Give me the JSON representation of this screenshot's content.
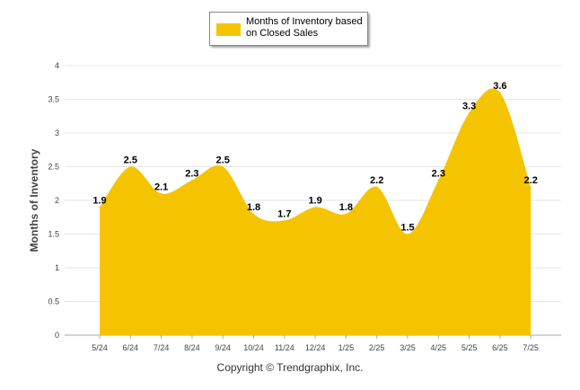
{
  "chart_data": {
    "type": "area",
    "categories": [
      "5/24",
      "6/24",
      "7/24",
      "8/24",
      "9/24",
      "10/24",
      "11/24",
      "12/24",
      "1/25",
      "2/25",
      "3/25",
      "4/25",
      "5/25",
      "6/25",
      "7/25"
    ],
    "series": [
      {
        "name": "Months of Inventory based on Closed Sales",
        "values": [
          1.9,
          2.5,
          2.1,
          2.3,
          2.5,
          1.8,
          1.7,
          1.9,
          1.8,
          2.2,
          1.5,
          2.3,
          3.3,
          3.6,
          2.2
        ],
        "color": "#f5c400"
      }
    ],
    "data_labels": [
      "1.9",
      "2.5",
      "2.1",
      "2.3",
      "2.5",
      "1.8",
      "1.7",
      "1.9",
      "1.8",
      "2.2",
      "1.5",
      "2.3",
      "3.3",
      "3.6",
      "2.2"
    ],
    "ylabel": "Months of Inventory",
    "ylim": [
      0,
      4
    ],
    "yticks": [
      "0",
      "0.5",
      "1",
      "1.5",
      "2",
      "2.5",
      "3",
      "3.5",
      "4"
    ],
    "grid": true,
    "legend_position": "top-center"
  },
  "footer": {
    "copyright": "Copyright © Trendgraphix, Inc."
  }
}
